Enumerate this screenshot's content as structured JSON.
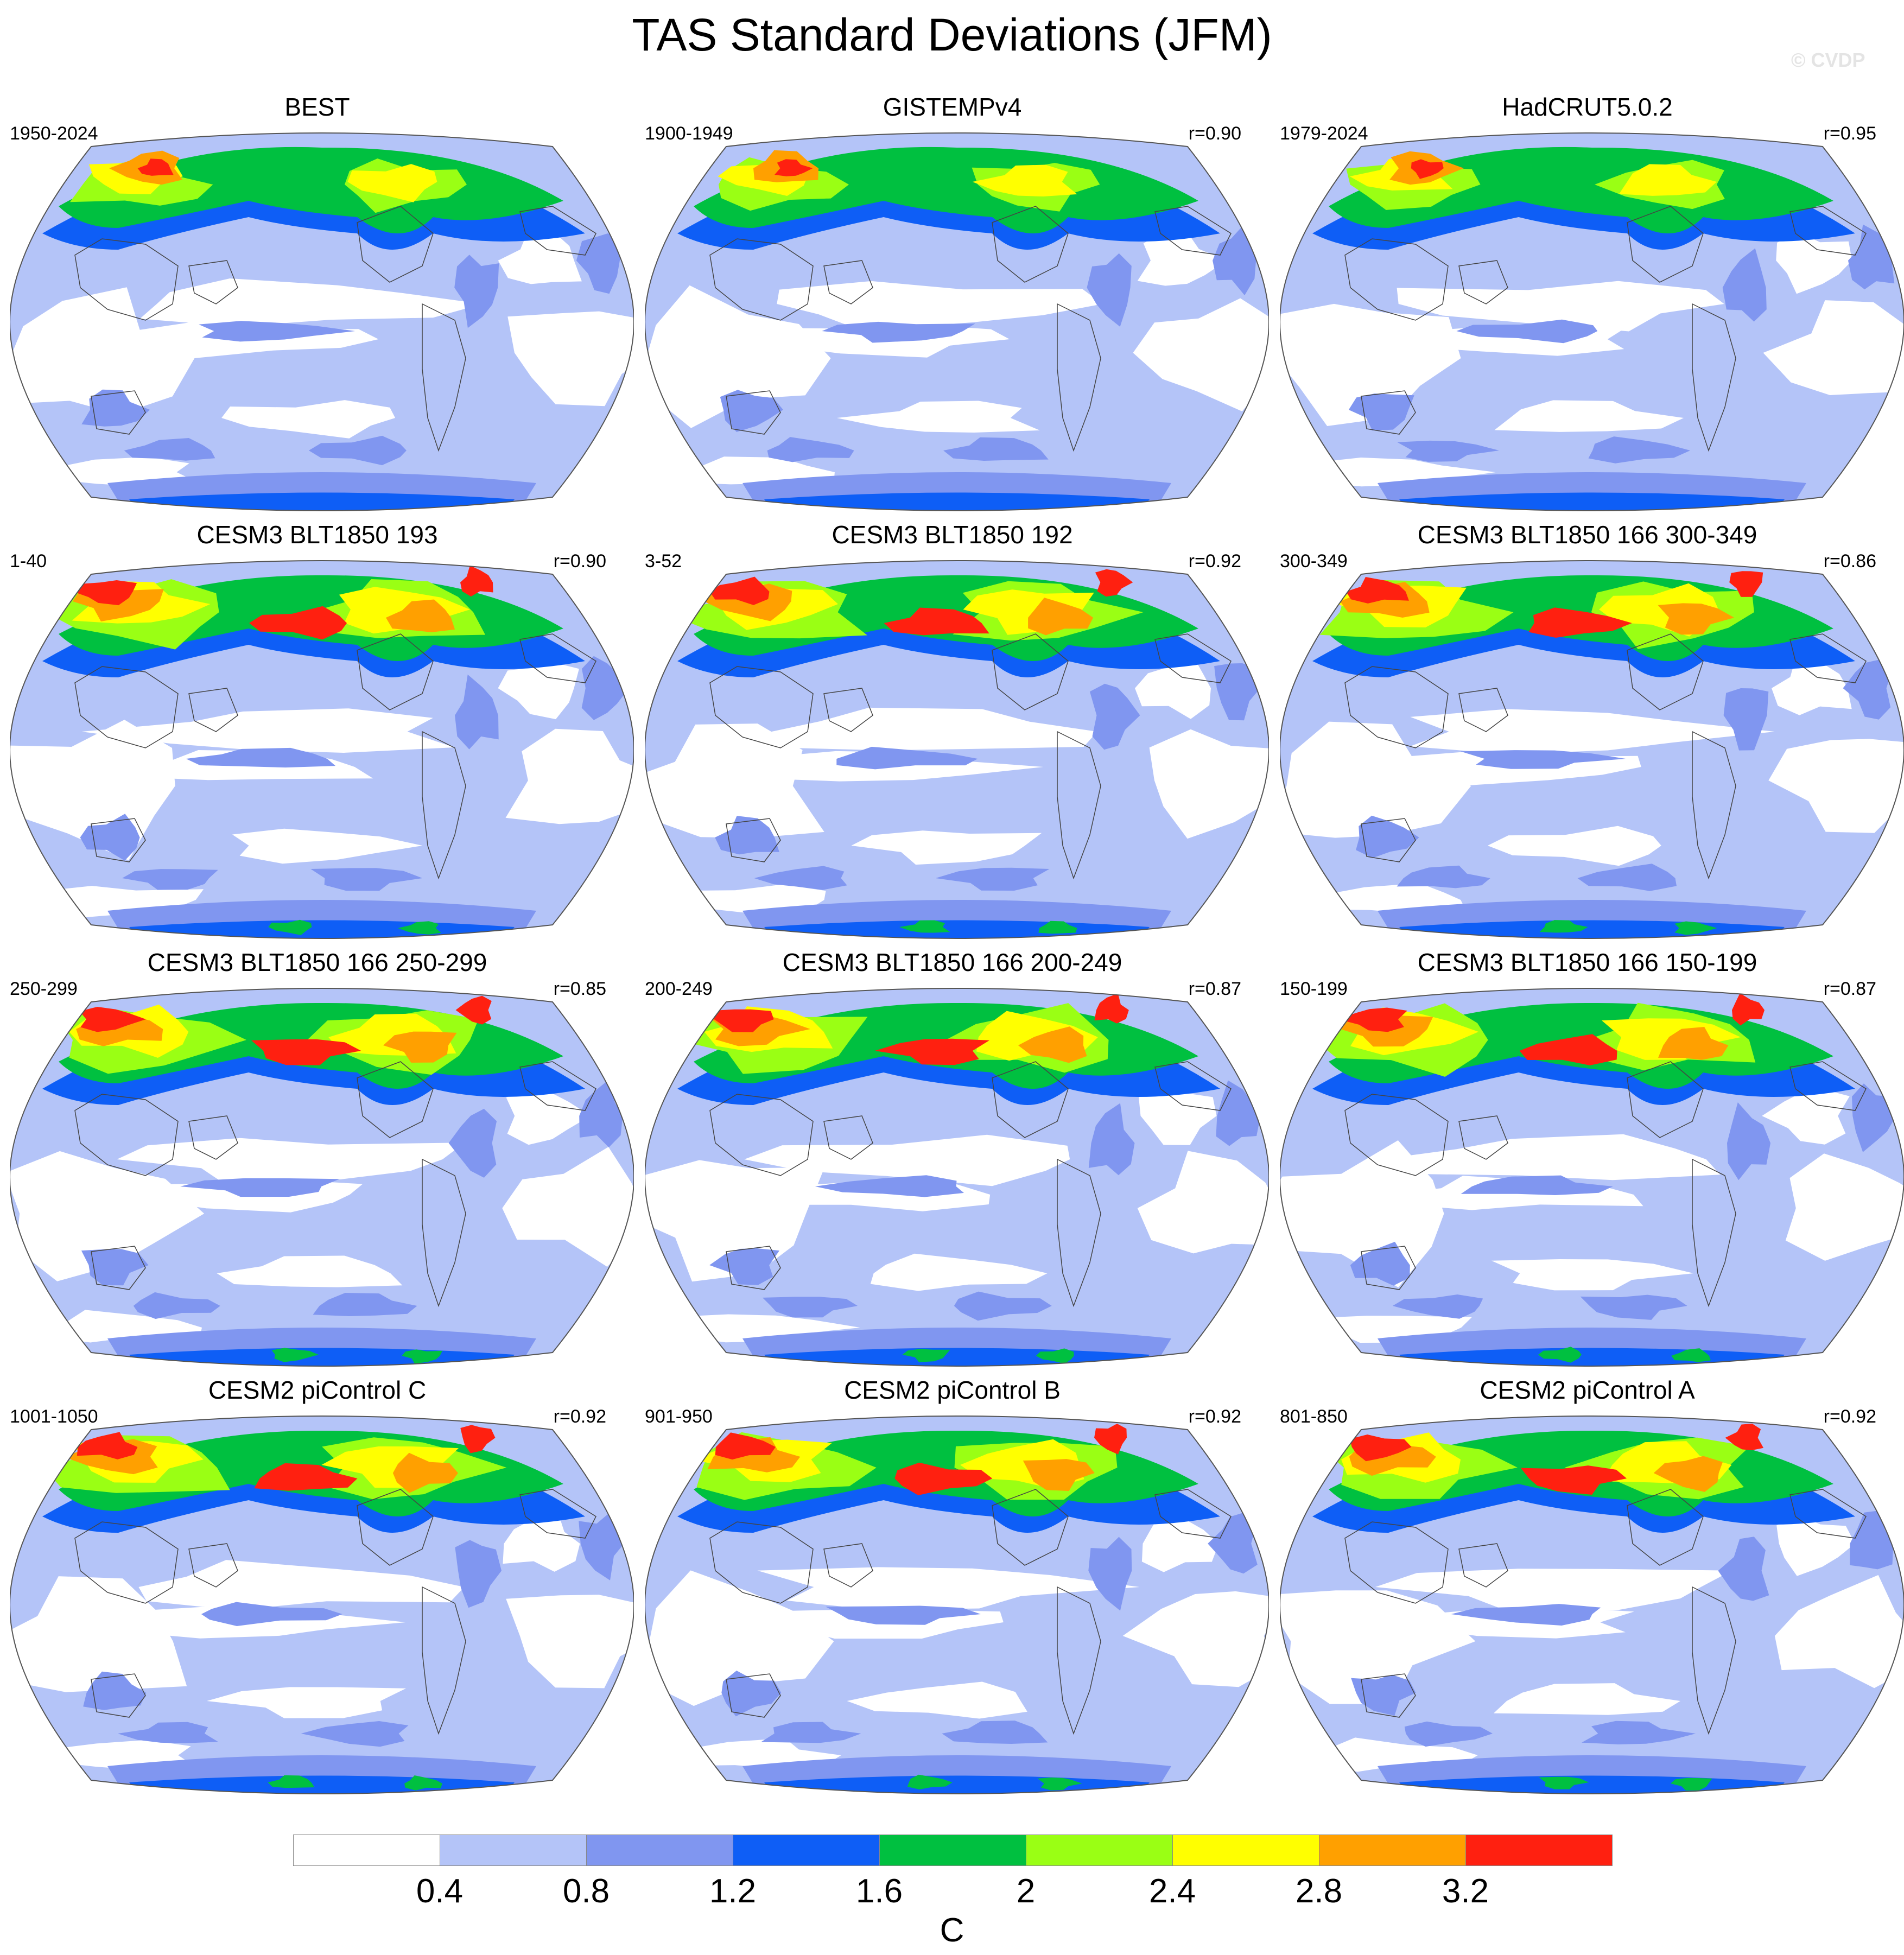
{
  "title": "TAS Standard Deviations (JFM)",
  "watermark": "© CVDP",
  "colors": {
    "levels": [
      "#ffffff",
      "#b4c4f8",
      "#8096f0",
      "#0e5ef6",
      "#00c040",
      "#9aff14",
      "#ffff00",
      "#ffa000",
      "#ff2010"
    ],
    "land_outline": "#444444",
    "map_border": "#555555"
  },
  "panels": [
    {
      "title": "BEST",
      "period": "1950-2024",
      "corr": ""
    },
    {
      "title": "GISTEMPv4",
      "period": "1900-1949",
      "corr": "r=0.90"
    },
    {
      "title": "HadCRUT5.0.2",
      "period": "1979-2024",
      "corr": "r=0.95"
    },
    {
      "title": "CESM3 BLT1850 193",
      "period": "1-40",
      "corr": "r=0.90"
    },
    {
      "title": "CESM3 BLT1850 192",
      "period": "3-52",
      "corr": "r=0.92"
    },
    {
      "title": "CESM3 BLT1850 166 300-349",
      "period": "300-349",
      "corr": "r=0.86"
    },
    {
      "title": "CESM3 BLT1850 166 250-299",
      "period": "250-299",
      "corr": "r=0.85"
    },
    {
      "title": "CESM3 BLT1850 166 200-249",
      "period": "200-249",
      "corr": "r=0.87"
    },
    {
      "title": "CESM3 BLT1850 166 150-199",
      "period": "150-199",
      "corr": "r=0.87"
    },
    {
      "title": "CESM2 piControl C",
      "period": "1001-1050",
      "corr": "r=0.92"
    },
    {
      "title": "CESM2 piControl B",
      "period": "901-950",
      "corr": "r=0.92"
    },
    {
      "title": "CESM2 piControl A",
      "period": "801-850",
      "corr": "r=0.92"
    }
  ],
  "colorbar": {
    "labels": [
      "0.4",
      "0.8",
      "1.2",
      "1.6",
      "2",
      "2.4",
      "2.8",
      "3.2"
    ],
    "units": "C"
  }
}
